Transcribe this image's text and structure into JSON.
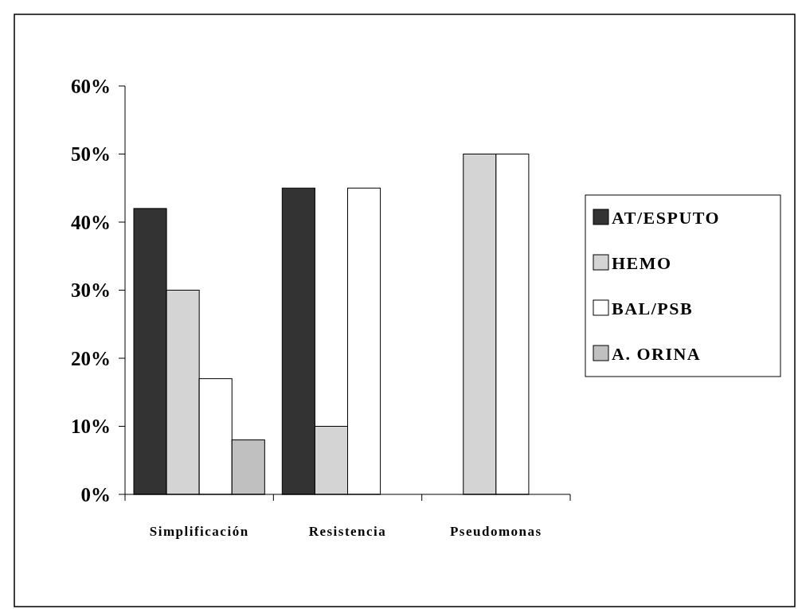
{
  "chart_data": {
    "type": "bar",
    "categories": [
      "Simplificación",
      "Resistencia",
      "Pseudomonas"
    ],
    "series": [
      {
        "name": "AT/ESPUTO",
        "color": "#333333",
        "values": [
          42,
          45,
          null
        ]
      },
      {
        "name": "HEMO",
        "color": "#d4d4d4",
        "values": [
          30,
          10,
          50
        ]
      },
      {
        "name": "BAL/PSB",
        "color": "#ffffff",
        "values": [
          17,
          45,
          50
        ]
      },
      {
        "name": "A. ORINA",
        "color": "#c0c0c0",
        "values": [
          8,
          null,
          null
        ]
      }
    ],
    "ylim": [
      0,
      60
    ],
    "yticks": [
      {
        "value": 0,
        "label": "0%"
      },
      {
        "value": 10,
        "label": "10%"
      },
      {
        "value": 20,
        "label": "20%"
      },
      {
        "value": 30,
        "label": "30%"
      },
      {
        "value": 40,
        "label": "40%"
      },
      {
        "value": 50,
        "label": "50%"
      },
      {
        "value": 60,
        "label": "60%"
      }
    ],
    "grid": false,
    "legend": "right"
  }
}
